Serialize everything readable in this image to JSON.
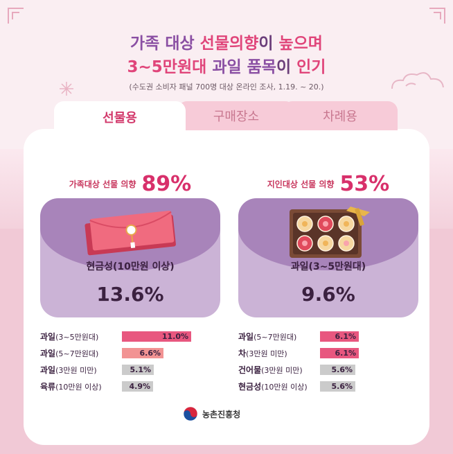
{
  "title": {
    "line1": [
      {
        "text": "가족 대상 ",
        "color": "purple"
      },
      {
        "text": "선물의향",
        "color": "pink"
      },
      {
        "text": "이 ",
        "color": "dark"
      },
      {
        "text": "높으며",
        "color": "pink"
      }
    ],
    "line2": [
      {
        "text": "3~5만원대 ",
        "color": "pink"
      },
      {
        "text": "과일 품목",
        "color": "purple"
      },
      {
        "text": "이 ",
        "color": "dark"
      },
      {
        "text": "인기",
        "color": "pink"
      }
    ]
  },
  "subtitle": "(수도권 소비자 패널 700명 대상 온라인 조사, 1.19. ~ 20.)",
  "tabs": [
    {
      "label": "선물용",
      "active": true
    },
    {
      "label": "구매장소",
      "active": false
    },
    {
      "label": "차례용",
      "active": false
    }
  ],
  "left_panel": {
    "label": "가족대상 선물 의향",
    "percent": "89%",
    "top_item": "현금성(10만원 이상)",
    "top_value": "13.6%",
    "icon": "envelope-icon",
    "bars": [
      {
        "bold": "과일",
        "rest": "(3~5만원대)",
        "value": 11.0,
        "value_label": "11.0%",
        "color": "pink"
      },
      {
        "bold": "과일",
        "rest": "(5~7만원대)",
        "value": 6.6,
        "value_label": "6.6%",
        "color": "salmon"
      },
      {
        "bold": "과일",
        "rest": "(3만원 미만)",
        "value": 5.1,
        "value_label": "5.1%",
        "color": "gray"
      },
      {
        "bold": "육류",
        "rest": "(10만원 이상)",
        "value": 4.9,
        "value_label": "4.9%",
        "color": "gray"
      }
    ]
  },
  "right_panel": {
    "label": "지인대상 선물 의향",
    "percent": "53%",
    "top_item": "과일(3~5만원대)",
    "top_value": "9.6%",
    "icon": "fruit-box-icon",
    "bars": [
      {
        "bold": "과일",
        "rest": "(5~7만원대)",
        "value": 6.1,
        "value_label": "6.1%",
        "color": "pink"
      },
      {
        "bold": "차",
        "rest": "(3만원 미만)",
        "value": 6.1,
        "value_label": "6.1%",
        "color": "pink"
      },
      {
        "bold": "건어물",
        "rest": "(3만원 미만)",
        "value": 5.6,
        "value_label": "5.6%",
        "color": "gray"
      },
      {
        "bold": "현금성",
        "rest": "(10만원 이상)",
        "value": 5.6,
        "value_label": "5.6%",
        "color": "gray"
      }
    ]
  },
  "logo": {
    "text": "농촌진흥청",
    "icon": "taegeuk-icon"
  },
  "colors": {
    "pink": "#e0457a",
    "purple": "#8a4fa3",
    "bar_pink": "#e8577f",
    "bar_salmon": "#f29393",
    "bar_gray": "#cbcbcb"
  }
}
